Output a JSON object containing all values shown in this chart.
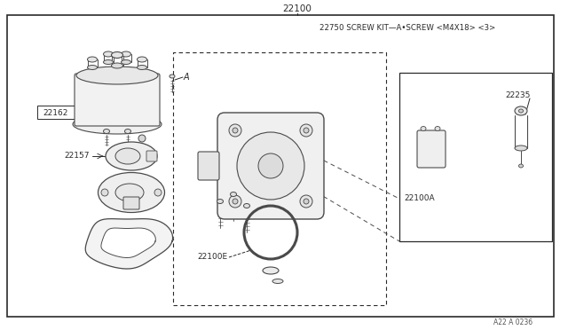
{
  "bg_color": "#ffffff",
  "lc": "#4a4a4a",
  "bc": "#2a2a2a",
  "fig_width": 6.4,
  "fig_height": 3.72,
  "dpi": 100,
  "title_label": "22100",
  "screw_kit_label": "22750 SCREW KIT—A•SCREW <M4X18> <3>",
  "label_A": "A",
  "label_22162": "22162",
  "label_22157": "22157",
  "label_22100E": "22100E",
  "label_22100A": "22100A",
  "label_22235": "22235",
  "footer_label": "A22 A 0236"
}
